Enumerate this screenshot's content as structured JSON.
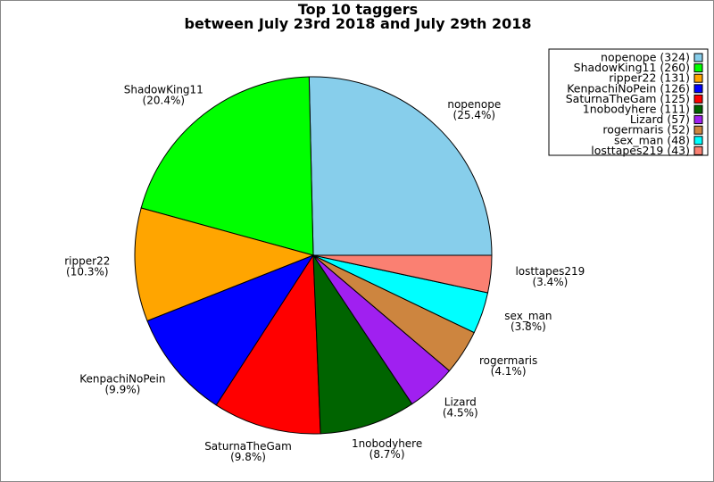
{
  "chart_data": {
    "type": "pie",
    "title": "Top 10 taggers",
    "subtitle": "between July 23rd 2018 and July 29th 2018",
    "legend_position": "top-right",
    "slices": [
      {
        "name": "nopenope",
        "value": 324,
        "percent_label": "(25.4%)",
        "legend_label": "nopenope (324)",
        "color": "#87CEEB"
      },
      {
        "name": "ShadowKing11",
        "value": 260,
        "percent_label": "(20.4%)",
        "legend_label": "ShadowKing11 (260)",
        "color": "#00FF00"
      },
      {
        "name": "ripper22",
        "value": 131,
        "percent_label": "(10.3%)",
        "legend_label": "ripper22 (131)",
        "color": "#FFA500"
      },
      {
        "name": "KenpachiNoPein",
        "value": 126,
        "percent_label": "(9.9%)",
        "legend_label": "KenpachiNoPein (126)",
        "color": "#0000FF"
      },
      {
        "name": "SaturnaTheGam",
        "value": 125,
        "percent_label": "(9.8%)",
        "legend_label": "SaturnaTheGam (125)",
        "color": "#FF0000"
      },
      {
        "name": "1nobodyhere",
        "value": 111,
        "percent_label": "(8.7%)",
        "legend_label": "1nobodyhere (111)",
        "color": "#006400"
      },
      {
        "name": "Lizard",
        "value": 57,
        "percent_label": "(4.5%)",
        "legend_label": "Lizard (57)",
        "color": "#A020F0"
      },
      {
        "name": "rogermaris",
        "value": 52,
        "percent_label": "(4.1%)",
        "legend_label": "rogermaris (52)",
        "color": "#CD853F"
      },
      {
        "name": "sex_man",
        "value": 48,
        "percent_label": "(3.8%)",
        "legend_label": "sex_man (48)",
        "color": "#00FFFF"
      },
      {
        "name": "losttapes219",
        "value": 43,
        "percent_label": "(3.4%)",
        "legend_label": "losttapes219 (43)",
        "color": "#FA8072"
      }
    ]
  }
}
